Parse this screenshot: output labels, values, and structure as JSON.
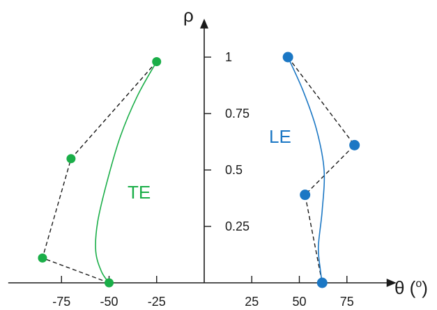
{
  "chart_data": {
    "type": "scatter",
    "x_axis_label": "θ (",
    "x_axis_label_superscript": "o",
    "x_axis_label_close": ")",
    "y_axis_label": "ρ",
    "x_ticks": [
      -75,
      -50,
      -25,
      25,
      50,
      75
    ],
    "x_tick_labels": [
      "-75",
      "-50",
      "-25",
      "25",
      "50",
      "75"
    ],
    "y_ticks": [
      0.25,
      0.5,
      0.75,
      1
    ],
    "y_tick_labels": [
      "0.25",
      "0.5",
      "0.75",
      "1"
    ],
    "xlim": [
      -103,
      101
    ],
    "ylim": [
      0,
      1.17
    ],
    "series": [
      {
        "name": "TE",
        "color": "#1aae48",
        "points": [
          {
            "x": -25,
            "y": 0.98
          },
          {
            "x": -70,
            "y": 0.55
          },
          {
            "x": -85,
            "y": 0.11
          },
          {
            "x": -50,
            "y": 0.0
          }
        ],
        "curve": [
          {
            "x": -25,
            "y": 0.98
          },
          {
            "x": -35,
            "y": 0.83
          },
          {
            "x": -44,
            "y": 0.65
          },
          {
            "x": -51,
            "y": 0.45
          },
          {
            "x": -56,
            "y": 0.27
          },
          {
            "x": -57,
            "y": 0.14
          },
          {
            "x": -54,
            "y": 0.05
          },
          {
            "x": -50,
            "y": 0.0
          }
        ]
      },
      {
        "name": "LE",
        "color": "#1b77c4",
        "points": [
          {
            "x": 44,
            "y": 1.0
          },
          {
            "x": 79,
            "y": 0.61
          },
          {
            "x": 53,
            "y": 0.39
          },
          {
            "x": 62,
            "y": 0.0
          }
        ],
        "curve": [
          {
            "x": 44,
            "y": 1.0
          },
          {
            "x": 52,
            "y": 0.85
          },
          {
            "x": 59,
            "y": 0.68
          },
          {
            "x": 63,
            "y": 0.5
          },
          {
            "x": 62,
            "y": 0.32
          },
          {
            "x": 60,
            "y": 0.16
          },
          {
            "x": 61,
            "y": 0.06
          },
          {
            "x": 62,
            "y": 0.0
          }
        ]
      }
    ],
    "dashed_polygon_color": "#1a1a1a",
    "axis_color": "#1a1a1a"
  }
}
